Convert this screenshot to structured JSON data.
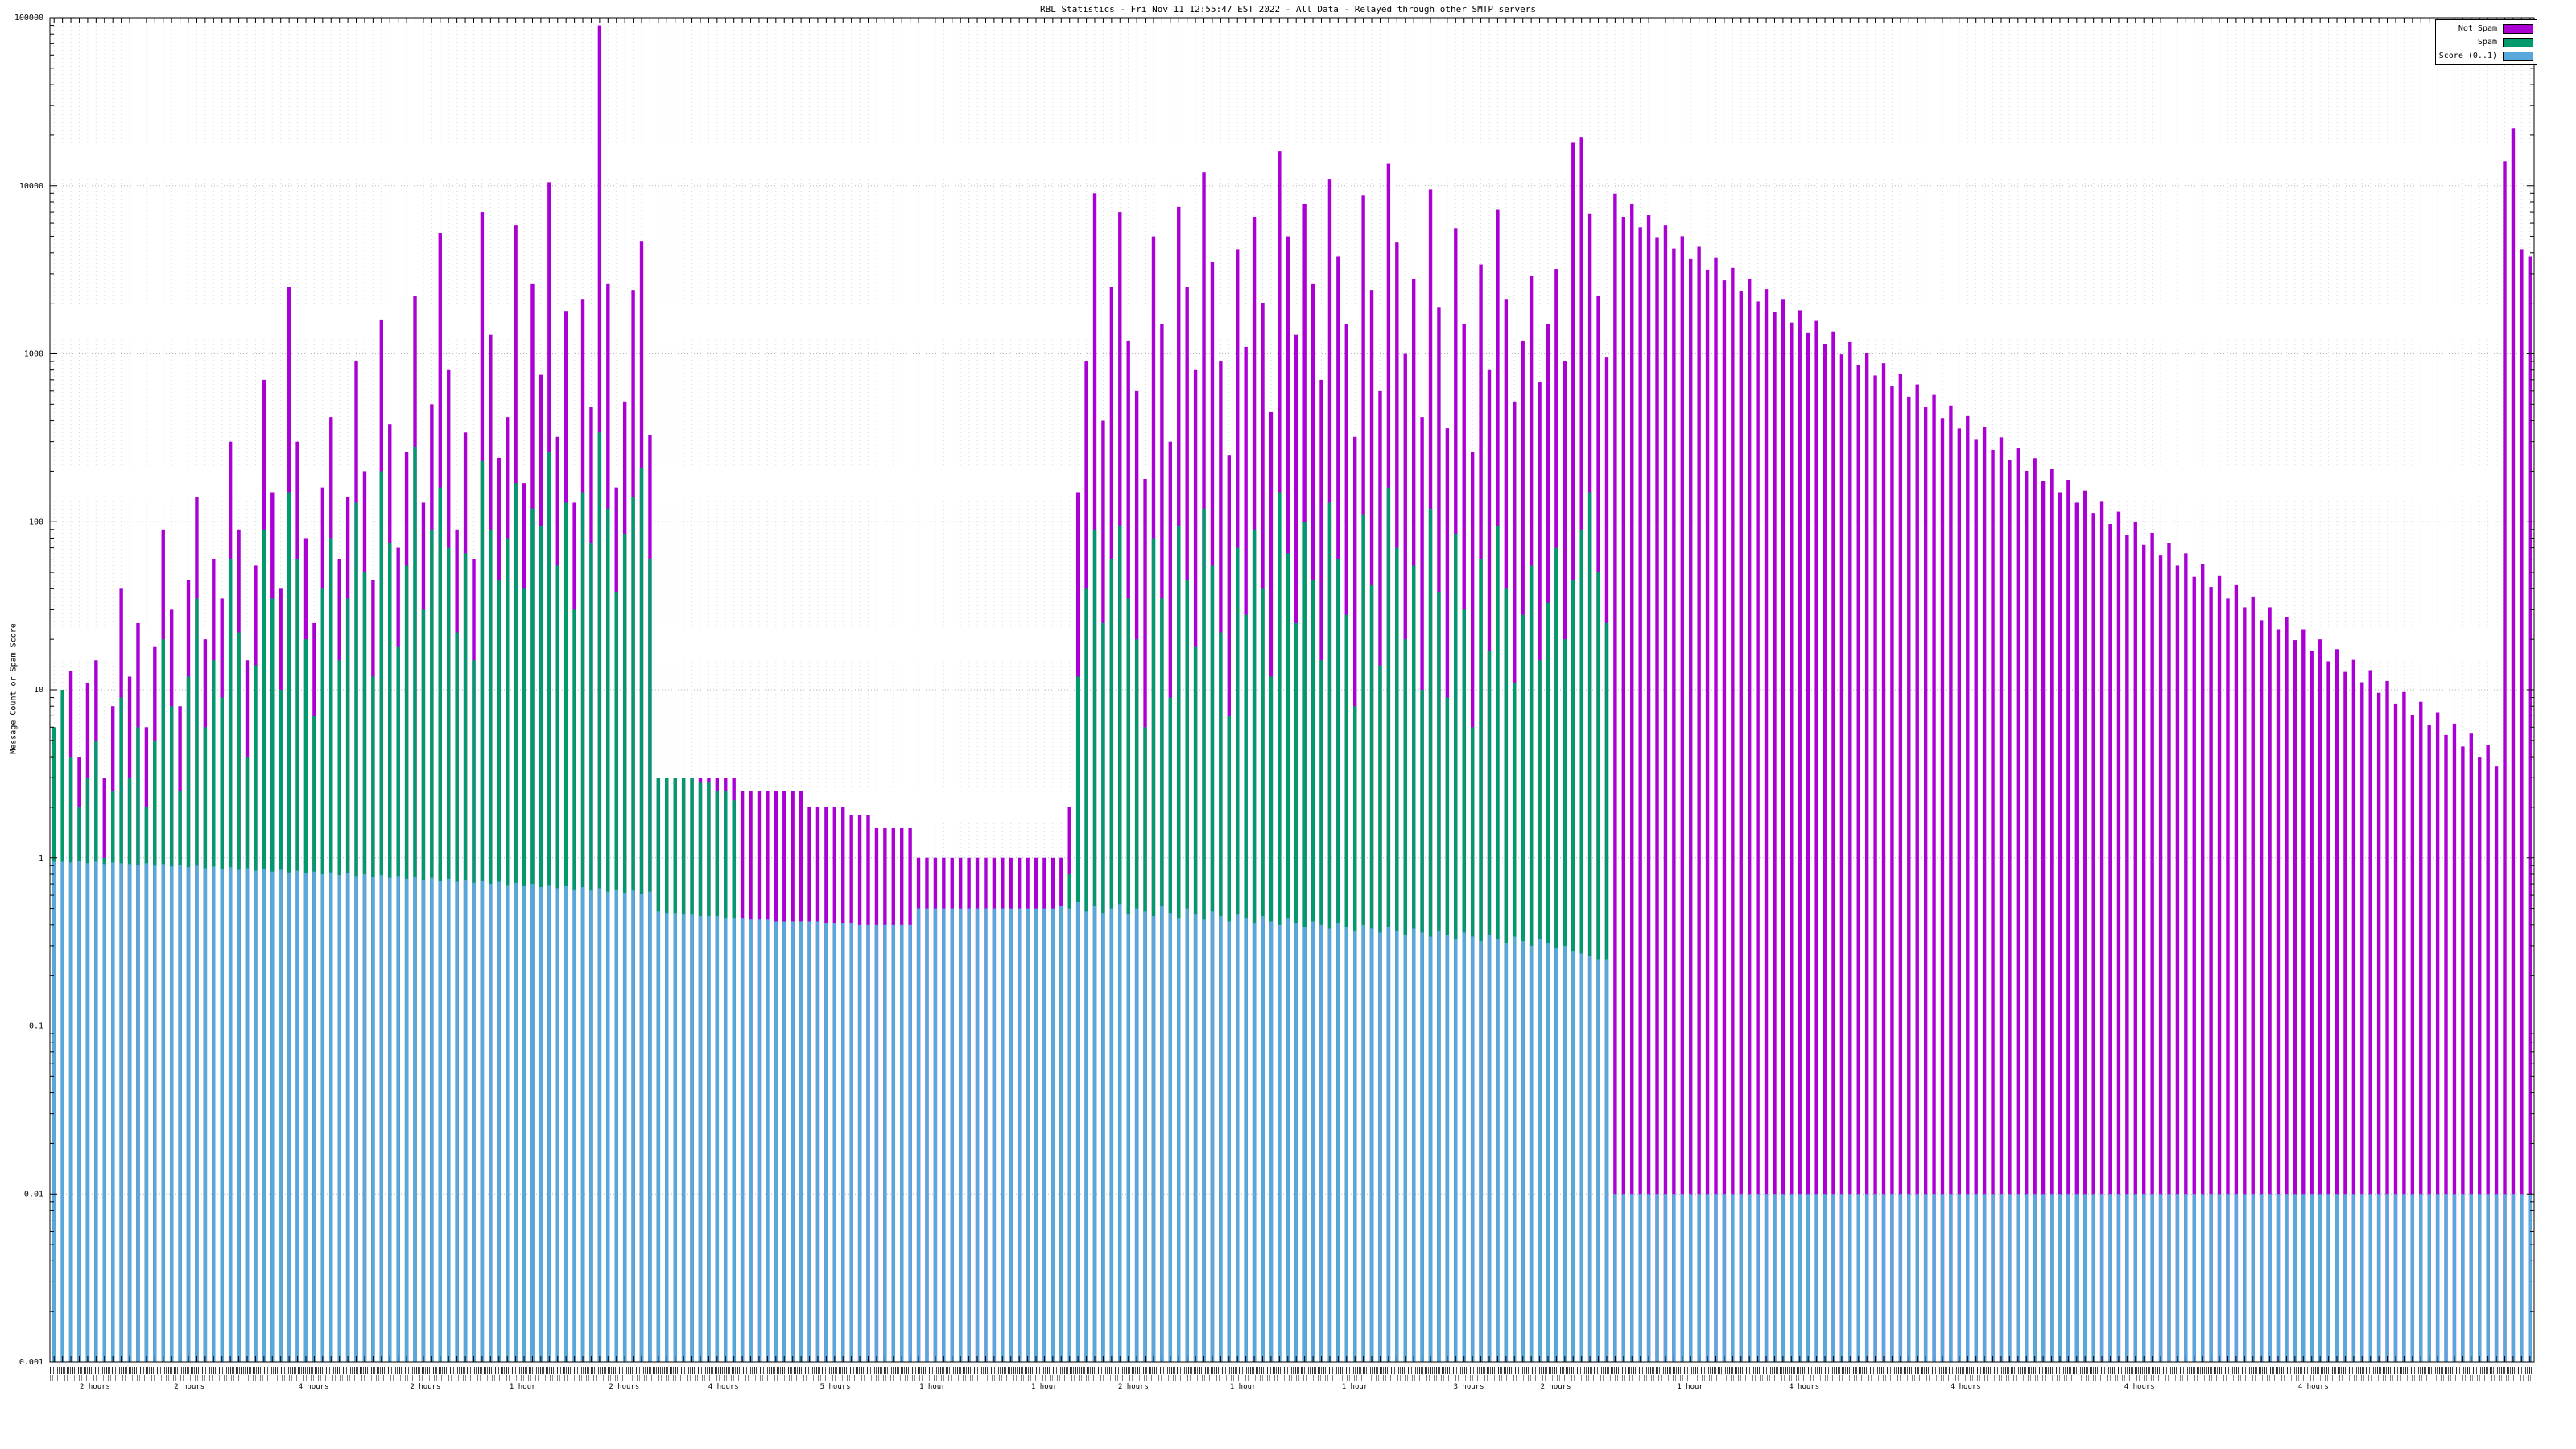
{
  "chart_data": {
    "type": "bar",
    "title": "RBL Statistics - Fri Nov 11 12:55:47 EST 2022 - All Data - Relayed through other SMTP servers",
    "ylabel": "Message Count or Spam Score",
    "yscale": "log",
    "ylim": [
      0.001,
      100000
    ],
    "ytick_labels": [
      "100000",
      "10000",
      "1000",
      "100",
      "10",
      "1",
      "0.1",
      "0.01",
      "0.001"
    ],
    "grid": true,
    "legend_position": "top-right",
    "colors": {
      "not_spam": "#AA00D4",
      "spam": "#009A6C",
      "score": "#58A8DC",
      "grid_major": "#b5b5b5",
      "grid_minor": "#dadada",
      "frame": "#000000"
    },
    "series": [
      {
        "name": "Not Spam",
        "color_key": "not_spam",
        "values": [
          2,
          9,
          13,
          4,
          11,
          15,
          3,
          8,
          40,
          12,
          25,
          6,
          18,
          90,
          30,
          8,
          45,
          140,
          20,
          60,
          35,
          300,
          90,
          15,
          55,
          700,
          150,
          40,
          2500,
          300,
          80,
          25,
          160,
          420,
          60,
          140,
          900,
          200,
          45,
          1600,
          380,
          70,
          260,
          2200,
          130,
          500,
          5200,
          800,
          90,
          340,
          60,
          7000,
          1300,
          240,
          420,
          5800,
          170,
          2600,
          750,
          10500,
          320,
          1800,
          130,
          2100,
          480,
          90000,
          2600,
          160,
          520,
          2400,
          4700,
          330,
          3,
          3,
          3,
          3,
          3,
          3,
          3,
          3,
          3,
          3,
          2.5,
          2.5,
          2.5,
          2.5,
          2.5,
          2.5,
          2.5,
          2.5,
          2,
          2,
          2,
          2,
          2,
          1.8,
          1.8,
          1.8,
          1.5,
          1.5,
          1.5,
          1.5,
          1.5,
          1,
          1,
          1,
          1,
          1,
          1,
          1,
          1,
          1,
          1,
          1,
          1,
          1,
          1,
          1,
          1,
          1,
          1,
          2,
          150,
          900,
          9000,
          400,
          2500,
          7000,
          1200,
          600,
          180,
          5000,
          1500,
          300,
          7500,
          2500,
          800,
          12000,
          3500,
          900,
          250,
          4200,
          1100,
          6500,
          2000,
          450,
          16000,
          5000,
          1300,
          7800,
          2600,
          700,
          11000,
          3800,
          1500,
          320,
          8800,
          2400,
          600,
          13500,
          4600,
          1000,
          2800,
          420,
          9500,
          1900,
          360,
          5600,
          1500,
          260,
          3400,
          800,
          7200,
          2100,
          520,
          1200,
          2900,
          680,
          1500,
          3200,
          900,
          18000,
          19500,
          6800,
          2200,
          950,
          8960,
          6547,
          7749,
          5663,
          6702,
          4897,
          5797,
          4236,
          5013,
          3663,
          4337,
          3169,
          3751,
          2740,
          3244,
          2370,
          2806,
          2050,
          2427,
          1773,
          2099,
          1534,
          1816,
          1327,
          1570,
          1148,
          1359,
          993,
          1175,
          859,
          1016,
          743,
          879,
          642,
          760,
          555,
          657,
          480,
          569,
          415,
          492,
          359,
          426,
          311,
          367,
          268,
          318,
          232,
          276,
          201,
          239,
          174,
          206,
          150,
          178,
          130,
          153,
          113,
          133,
          97,
          115,
          84,
          100,
          73,
          86,
          63,
          75,
          55,
          65,
          47,
          56,
          41,
          48,
          35,
          42,
          31,
          36,
          26,
          31,
          23,
          27,
          19.8,
          23,
          17,
          20,
          14.8,
          17.5,
          12.8,
          15.1,
          11.1,
          13.1,
          9.6,
          11.3,
          8.3,
          9.7,
          7.1,
          8.5,
          6.2,
          7.3,
          5.4,
          6.3,
          4.6,
          5.5,
          4.0,
          4.7,
          3.5,
          14000,
          22000,
          4200,
          3800
        ]
      },
      {
        "name": "Spam",
        "color_key": "spam",
        "values": [
          6,
          10,
          4,
          2,
          3,
          5,
          1,
          2.5,
          9,
          3,
          6,
          2,
          5,
          20,
          8,
          2.5,
          12,
          35,
          6,
          15,
          9,
          60,
          22,
          4,
          14,
          90,
          35,
          10,
          150,
          60,
          20,
          7,
          40,
          80,
          15,
          35,
          130,
          50,
          12,
          200,
          75,
          18,
          55,
          280,
          30,
          90,
          160,
          70,
          22,
          65,
          15,
          230,
          90,
          45,
          80,
          170,
          40,
          120,
          95,
          260,
          55,
          130,
          30,
          150,
          75,
          340,
          120,
          38,
          85,
          140,
          210,
          60,
          3,
          3,
          3,
          3,
          3,
          2.8,
          2.8,
          2.5,
          2.5,
          2.2,
          0,
          0,
          0,
          0,
          0,
          0,
          0,
          0,
          0,
          0,
          0,
          0,
          0,
          0,
          0,
          0,
          0,
          0,
          0,
          0,
          0,
          0,
          0,
          0,
          0,
          0,
          0,
          0,
          0,
          0,
          0,
          0,
          0,
          0,
          0,
          0,
          0,
          0,
          0.5,
          0.8,
          12,
          40,
          90,
          25,
          60,
          95,
          35,
          20,
          6,
          80,
          35,
          9,
          95,
          45,
          18,
          120,
          55,
          22,
          7,
          70,
          28,
          90,
          40,
          12,
          150,
          65,
          25,
          100,
          45,
          15,
          130,
          60,
          28,
          8,
          110,
          42,
          14,
          160,
          70,
          20,
          55,
          10,
          120,
          38,
          9,
          85,
          30,
          6,
          60,
          17,
          95,
          40,
          11,
          28,
          55,
          15,
          33,
          70,
          20,
          45,
          90,
          150,
          50,
          25,
          0,
          0,
          0,
          0,
          0,
          0,
          0,
          0,
          0,
          0,
          0,
          0,
          0,
          0,
          0,
          0,
          0,
          0,
          0,
          0,
          0,
          0,
          0,
          0,
          0,
          0,
          0,
          0,
          0,
          0,
          0,
          0,
          0,
          0,
          0,
          0,
          0,
          0,
          0,
          0,
          0,
          0,
          0,
          0,
          0,
          0,
          0,
          0,
          0,
          0,
          0,
          0,
          0,
          0,
          0,
          0,
          0,
          0,
          0,
          0,
          0,
          0,
          0,
          0,
          0,
          0,
          0,
          0,
          0,
          0,
          0,
          0,
          0,
          0,
          0,
          0,
          0,
          0,
          0,
          0,
          0,
          0,
          0,
          0,
          0,
          0,
          0,
          0,
          0,
          0,
          0,
          0,
          0,
          0,
          0,
          0,
          0,
          0,
          0,
          0,
          0,
          0,
          0,
          0,
          0,
          0,
          0,
          0,
          0,
          0
        ]
      },
      {
        "name": "Score (0..1)",
        "color_key": "score",
        "values": [
          0.95,
          0.95,
          0.94,
          0.96,
          0.93,
          0.95,
          0.92,
          0.94,
          0.93,
          0.92,
          0.91,
          0.93,
          0.9,
          0.92,
          0.89,
          0.91,
          0.88,
          0.9,
          0.87,
          0.89,
          0.86,
          0.88,
          0.85,
          0.87,
          0.84,
          0.86,
          0.83,
          0.85,
          0.82,
          0.84,
          0.81,
          0.83,
          0.8,
          0.82,
          0.79,
          0.81,
          0.78,
          0.8,
          0.77,
          0.79,
          0.76,
          0.78,
          0.75,
          0.77,
          0.74,
          0.76,
          0.73,
          0.75,
          0.72,
          0.74,
          0.71,
          0.73,
          0.7,
          0.72,
          0.69,
          0.71,
          0.68,
          0.7,
          0.67,
          0.69,
          0.66,
          0.68,
          0.65,
          0.67,
          0.64,
          0.66,
          0.63,
          0.65,
          0.62,
          0.64,
          0.61,
          0.63,
          0.48,
          0.47,
          0.47,
          0.46,
          0.46,
          0.45,
          0.45,
          0.45,
          0.44,
          0.44,
          0.44,
          0.43,
          0.43,
          0.43,
          0.42,
          0.42,
          0.42,
          0.42,
          0.42,
          0.42,
          0.41,
          0.41,
          0.41,
          0.41,
          0.4,
          0.4,
          0.4,
          0.4,
          0.4,
          0.4,
          0.4,
          0.5,
          0.5,
          0.5,
          0.5,
          0.5,
          0.5,
          0.5,
          0.5,
          0.5,
          0.5,
          0.5,
          0.5,
          0.5,
          0.5,
          0.5,
          0.5,
          0.5,
          0.52,
          0.5,
          0.55,
          0.48,
          0.52,
          0.47,
          0.5,
          0.53,
          0.46,
          0.5,
          0.48,
          0.45,
          0.52,
          0.47,
          0.44,
          0.5,
          0.46,
          0.43,
          0.48,
          0.45,
          0.42,
          0.46,
          0.44,
          0.41,
          0.45,
          0.42,
          0.4,
          0.44,
          0.41,
          0.39,
          0.42,
          0.4,
          0.38,
          0.41,
          0.39,
          0.37,
          0.4,
          0.38,
          0.36,
          0.39,
          0.37,
          0.35,
          0.38,
          0.36,
          0.34,
          0.37,
          0.35,
          0.33,
          0.36,
          0.34,
          0.32,
          0.35,
          0.33,
          0.31,
          0.34,
          0.32,
          0.3,
          0.33,
          0.31,
          0.29,
          0.3,
          0.28,
          0.27,
          0.26,
          0.25,
          0.25,
          0.01,
          0.01,
          0.01,
          0.01,
          0.01,
          0.01,
          0.01,
          0.01,
          0.01,
          0.01,
          0.01,
          0.01,
          0.01,
          0.01,
          0.01,
          0.01,
          0.01,
          0.01,
          0.01,
          0.01,
          0.01,
          0.01,
          0.01,
          0.01,
          0.01,
          0.01,
          0.01,
          0.01,
          0.01,
          0.01,
          0.01,
          0.01,
          0.01,
          0.01,
          0.01,
          0.01,
          0.01,
          0.01,
          0.01,
          0.01,
          0.01,
          0.01,
          0.01,
          0.01,
          0.01,
          0.01,
          0.01,
          0.01,
          0.01,
          0.01,
          0.01,
          0.01,
          0.01,
          0.01,
          0.01,
          0.01,
          0.01,
          0.01,
          0.01,
          0.01,
          0.01,
          0.01,
          0.01,
          0.01,
          0.01,
          0.01,
          0.01,
          0.01,
          0.01,
          0.01,
          0.01,
          0.01,
          0.01,
          0.01,
          0.01,
          0.01,
          0.01,
          0.01,
          0.01,
          0.01,
          0.01,
          0.01,
          0.01,
          0.01,
          0.01,
          0.01,
          0.01,
          0.01,
          0.01,
          0.01,
          0.01,
          0.01,
          0.01,
          0.01,
          0.01,
          0.01,
          0.01,
          0.01,
          0.01,
          0.01,
          0.01,
          0.01,
          0.01,
          0.01,
          0.01,
          0.01,
          0.01,
          0.01,
          0.01,
          0.01
        ]
      }
    ],
    "x_axis": {
      "dense_labels_legible": false,
      "sublabels": [
        {
          "pos": 0.012,
          "label": "2 hours"
        },
        {
          "pos": 0.05,
          "label": "2 hours"
        },
        {
          "pos": 0.1,
          "label": "4 hours"
        },
        {
          "pos": 0.145,
          "label": "2 hours"
        },
        {
          "pos": 0.185,
          "label": "1 hour"
        },
        {
          "pos": 0.225,
          "label": "2 hours"
        },
        {
          "pos": 0.265,
          "label": "4 hours"
        },
        {
          "pos": 0.31,
          "label": "5 hours"
        },
        {
          "pos": 0.35,
          "label": "1 hour"
        },
        {
          "pos": 0.395,
          "label": "1 hour"
        },
        {
          "pos": 0.43,
          "label": "2 hours"
        },
        {
          "pos": 0.475,
          "label": "1 hour"
        },
        {
          "pos": 0.52,
          "label": "1 hour"
        },
        {
          "pos": 0.565,
          "label": "3 hours"
        },
        {
          "pos": 0.6,
          "label": "2 hours"
        },
        {
          "pos": 0.655,
          "label": "1 hour"
        },
        {
          "pos": 0.7,
          "label": "4 hours"
        },
        {
          "pos": 0.765,
          "label": "4 hours"
        },
        {
          "pos": 0.835,
          "label": "4 hours"
        },
        {
          "pos": 0.905,
          "label": "4 hours"
        }
      ]
    }
  }
}
